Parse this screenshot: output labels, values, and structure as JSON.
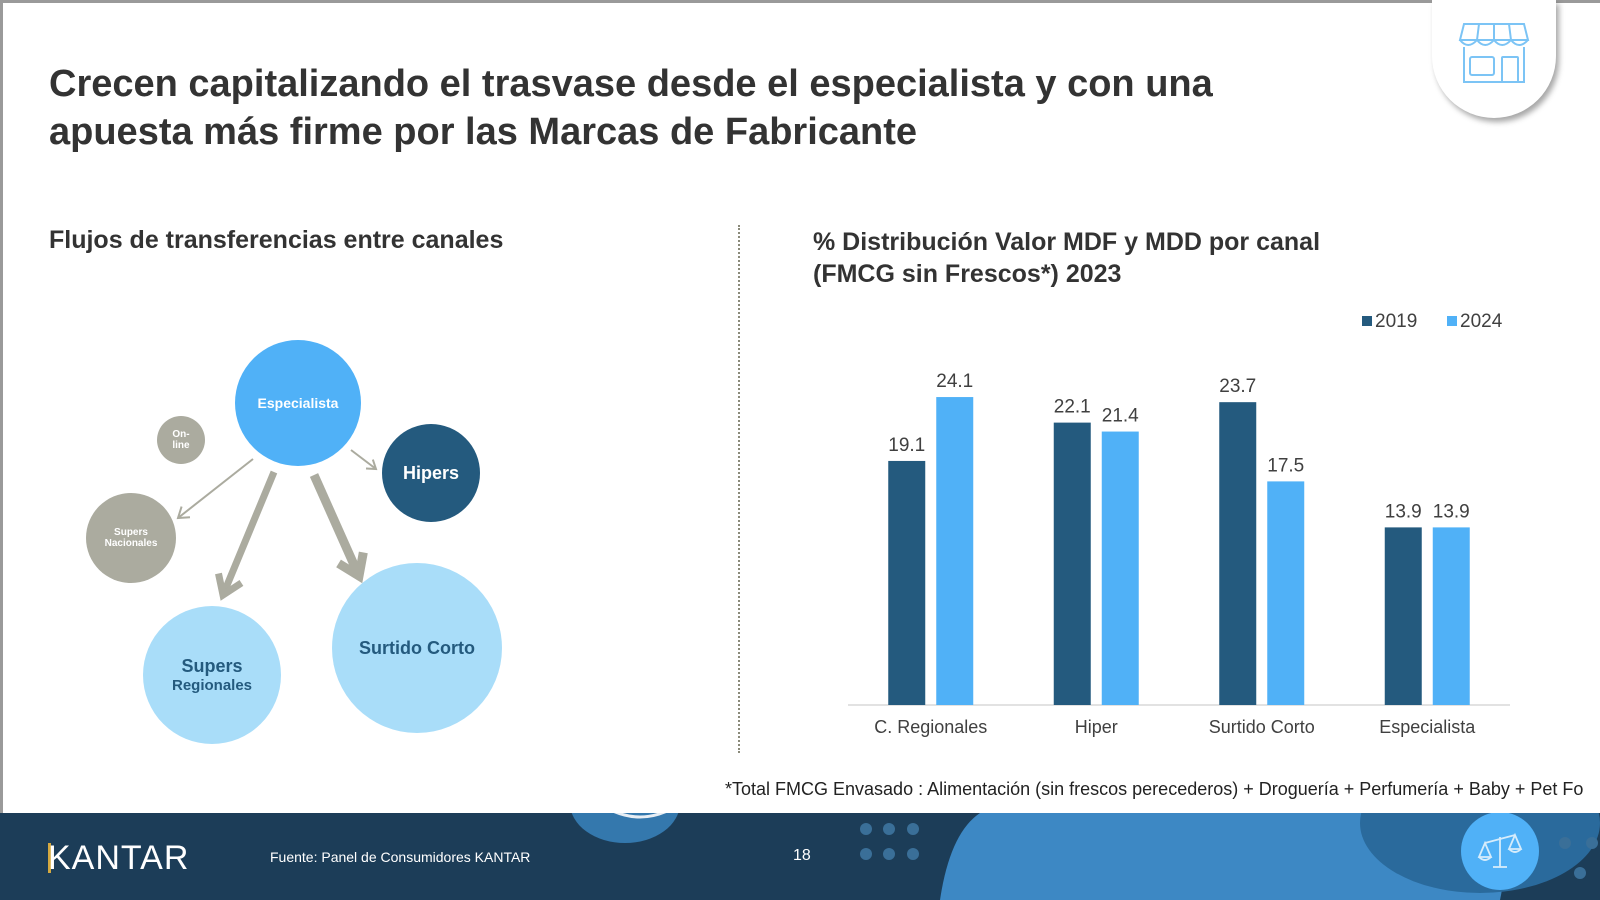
{
  "slide": {
    "title_line1": "Crecen capitalizando el trasvase desde el especialista y con una",
    "title_line2": "apuesta más firme por las Marcas de Fabricante",
    "badge_icon": "store-icon",
    "footer_icon": "balance-scale-icon"
  },
  "left_panel": {
    "title": "Flujos de transferencias entre canales",
    "nodes": [
      {
        "id": "especialista",
        "label1": "Especialista",
        "label2": "",
        "color": "#50b1f7",
        "text_color": "#ffffff"
      },
      {
        "id": "online",
        "label1": "On-",
        "label2": "line",
        "color": "#abab9f",
        "text_color": "#ffffff"
      },
      {
        "id": "hipers",
        "label1": "Hipers",
        "label2": "",
        "color": "#245a7e",
        "text_color": "#ffffff"
      },
      {
        "id": "supers-nacionales",
        "label1": "Supers",
        "label2": "Nacionales",
        "color": "#abab9f",
        "text_color": "#ffffff"
      },
      {
        "id": "supers-regionales",
        "label1": "Supers",
        "label2": "Regionales",
        "color": "#a9ddf9",
        "text_color": "#245a7e"
      },
      {
        "id": "surtido-corto",
        "label1": "Surtido Corto",
        "label2": "",
        "color": "#a9ddf9",
        "text_color": "#245a7e"
      }
    ],
    "arrow_color": "#abab9f"
  },
  "right_panel": {
    "title_line1": "% Distribución Valor MDF y MDD por canal",
    "title_line2": "(FMCG sin Frescos*) 2023"
  },
  "chart_data": {
    "type": "bar",
    "title": "% Distribución Valor MDF y MDD por canal (FMCG sin Frescos*) 2023",
    "categories": [
      "C. Regionales",
      "Hiper",
      "Surtido Corto",
      "Especialista"
    ],
    "series": [
      {
        "name": "2019",
        "values": [
          19.1,
          22.1,
          23.7,
          13.9
        ],
        "color": "#245a7e"
      },
      {
        "name": "2024",
        "values": [
          24.1,
          21.4,
          17.5,
          13.9
        ],
        "color": "#50b1f7"
      }
    ],
    "ylim": [
      0,
      27
    ],
    "grid": false,
    "legend": "top-right",
    "xlabel": "",
    "ylabel": ""
  },
  "footnote": "*Total FMCG Envasado : Alimentación (sin frescos perecederos) + Droguería + Perfumería + Baby + Pet Fo",
  "footer": {
    "logo": "KANTAR",
    "source": "Fuente: Panel de Consumidores KANTAR",
    "page_number": "18"
  }
}
